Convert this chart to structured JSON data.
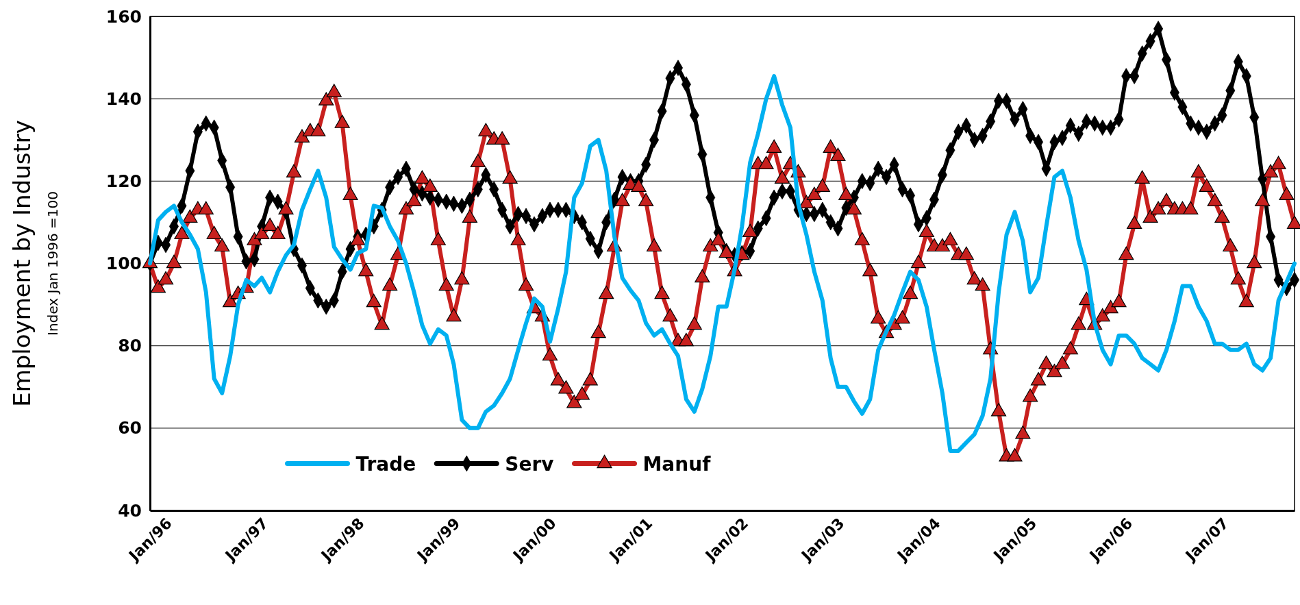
{
  "chart_data": {
    "type": "line",
    "ylabel": "Employment by Industry",
    "annotations": [
      "Index Jan 1996 =100"
    ],
    "x": [
      "1996-01",
      "1996-02",
      "1996-03",
      "1996-04",
      "1996-05",
      "1996-06",
      "1996-07",
      "1996-08",
      "1996-09",
      "1996-10",
      "1996-11",
      "1996-12",
      "1997-01",
      "1997-02",
      "1997-03",
      "1997-04",
      "1997-05",
      "1997-06",
      "1997-07",
      "1997-08",
      "1997-09",
      "1997-10",
      "1997-11",
      "1997-12",
      "1998-01",
      "1998-02",
      "1998-03",
      "1998-04",
      "1998-05",
      "1998-06",
      "1998-07",
      "1998-08",
      "1998-09",
      "1998-10",
      "1998-11",
      "1998-12",
      "1999-01",
      "1999-02",
      "1999-03",
      "1999-04",
      "1999-05",
      "1999-06",
      "1999-07",
      "1999-08",
      "1999-09",
      "1999-10",
      "1999-11",
      "1999-12",
      "2000-01",
      "2000-02",
      "2000-03",
      "2000-04",
      "2000-05",
      "2000-06",
      "2000-07",
      "2000-08",
      "2000-09",
      "2000-10",
      "2000-11",
      "2000-12",
      "2001-01",
      "2001-02",
      "2001-03",
      "2001-04",
      "2001-05",
      "2001-06",
      "2001-07",
      "2001-08",
      "2001-09",
      "2001-10",
      "2001-11",
      "2001-12",
      "2002-01",
      "2002-02",
      "2002-03",
      "2002-04",
      "2002-05",
      "2002-06",
      "2002-07",
      "2002-08",
      "2002-09",
      "2002-10",
      "2002-11",
      "2002-12",
      "2003-01",
      "2003-02",
      "2003-03",
      "2003-04",
      "2003-05",
      "2003-06",
      "2003-07",
      "2003-08",
      "2003-09",
      "2003-10",
      "2003-11",
      "2003-12",
      "2004-01",
      "2004-02",
      "2004-03",
      "2004-04",
      "2004-05",
      "2004-06",
      "2004-07",
      "2004-08",
      "2004-09",
      "2004-10",
      "2004-11",
      "2004-12",
      "2005-01",
      "2005-02",
      "2005-03",
      "2005-04",
      "2005-05",
      "2005-06",
      "2005-07",
      "2005-08",
      "2005-09",
      "2005-10",
      "2005-11",
      "2005-12",
      "2006-01",
      "2006-02",
      "2006-03",
      "2006-04",
      "2006-05",
      "2006-06",
      "2006-07",
      "2006-08",
      "2006-09",
      "2006-10",
      "2006-11",
      "2006-12",
      "2007-01",
      "2007-02",
      "2007-03",
      "2007-04",
      "2007-05",
      "2007-06",
      "2007-07",
      "2007-08",
      "2007-09",
      "2007-10",
      "2007-11",
      "2007-12"
    ],
    "series": [
      {
        "name": "Trade",
        "color": "#00b0f0",
        "marker": "none",
        "values": [
          100,
          110.5,
          112.5,
          114,
          110,
          107,
          103.5,
          93,
          72,
          68.5,
          77.5,
          90,
          96,
          94.5,
          96.5,
          93,
          98,
          102,
          104.5,
          113,
          118,
          122.5,
          116,
          104,
          101,
          98.5,
          102.5,
          103.5,
          114,
          113.5,
          109,
          105.5,
          100,
          93,
          85,
          80.5,
          84,
          82.5,
          75.5,
          62,
          60,
          60,
          64,
          65.5,
          68.5,
          72,
          79,
          85.5,
          91.5,
          89.5,
          81,
          89,
          98,
          116,
          119.5,
          128.5,
          130,
          122.5,
          106.5,
          96.5,
          93.5,
          91,
          85.5,
          82.5,
          84,
          80.5,
          77.5,
          67,
          64,
          69.5,
          77.5,
          89.5,
          89.5,
          98.5,
          109,
          124.5,
          131.5,
          140,
          145.5,
          138.5,
          133,
          114.5,
          107,
          98,
          91,
          77,
          70,
          70,
          66.5,
          63.5,
          67,
          79,
          83.5,
          87.5,
          93,
          98,
          96,
          89.5,
          79,
          68.5,
          54.5,
          54.5,
          56.5,
          58.5,
          63,
          72,
          93,
          107,
          112.5,
          105.5,
          93,
          96.5,
          109,
          121,
          122.5,
          116,
          105.5,
          98.5,
          85.5,
          79,
          75.5,
          82.5,
          82.5,
          80.5,
          77,
          75.5,
          74,
          79,
          86,
          94.5,
          94.5,
          89.5,
          86,
          80.5,
          80.5,
          79,
          79,
          80.5,
          75.5,
          74,
          77,
          91,
          95.5,
          100
        ]
      },
      {
        "name": "Serv",
        "color": "#000000",
        "marker": "diamond",
        "values": [
          100,
          105,
          104.5,
          109,
          114,
          122.5,
          132,
          134,
          133,
          125,
          118.5,
          106.5,
          100.5,
          101,
          109,
          116,
          115,
          112.5,
          103.5,
          99.5,
          94,
          91,
          89.5,
          91,
          98,
          103.5,
          106.5,
          107,
          109,
          113,
          118.5,
          121,
          123,
          118,
          117,
          116,
          115.5,
          115,
          114.5,
          114,
          115.5,
          118,
          121.5,
          118,
          113,
          109,
          112,
          111.5,
          109.5,
          111.5,
          113,
          113,
          113,
          111.5,
          110,
          106,
          103,
          110,
          115.5,
          121,
          120,
          120,
          124,
          130,
          137,
          145,
          147.5,
          143.5,
          136,
          126.5,
          116,
          107.5,
          103,
          102,
          102.5,
          103,
          108.5,
          111,
          116,
          117.5,
          117.5,
          113,
          112,
          112,
          113,
          110,
          108.5,
          113.5,
          116,
          120,
          119.5,
          123,
          121,
          124,
          118,
          116.5,
          109.5,
          111,
          115.5,
          121.5,
          127.5,
          132,
          133.5,
          130,
          131,
          134.5,
          139.5,
          139.5,
          135,
          137.5,
          131,
          129.5,
          123,
          129.5,
          130.5,
          133.5,
          131.5,
          134.5,
          134,
          133,
          133,
          135,
          145.5,
          145.5,
          151,
          154,
          157,
          149.5,
          141.5,
          138,
          134,
          133,
          132,
          134,
          136,
          142,
          149,
          145.5,
          135.5,
          120.5,
          106.5,
          96,
          94,
          96
        ]
      },
      {
        "name": "Manuf",
        "color": "#c8201e",
        "marker": "triangle",
        "values": [
          100,
          94,
          96,
          100,
          107,
          111,
          113,
          113,
          107,
          104,
          90.5,
          92.5,
          94,
          105.5,
          107,
          109,
          107,
          113,
          122,
          130.5,
          132,
          132,
          139.5,
          141.5,
          134,
          116.5,
          105.5,
          98,
          90.5,
          85,
          94.5,
          102,
          113,
          115,
          120.5,
          118.5,
          105.5,
          94.5,
          87,
          96,
          111,
          124.5,
          132,
          130,
          130,
          120.5,
          105.5,
          94.5,
          89,
          87,
          77.5,
          71.5,
          69.5,
          66,
          68,
          71.5,
          83,
          92.5,
          104,
          115,
          119,
          118.5,
          115,
          104,
          92.5,
          87,
          81,
          81,
          85,
          96.5,
          104,
          105.5,
          102.5,
          98,
          102,
          107.5,
          124,
          124,
          128,
          120.5,
          124,
          122,
          114.5,
          116.5,
          118.5,
          128,
          126,
          116.5,
          113,
          105.5,
          98,
          86.5,
          83,
          85,
          86.5,
          92.5,
          100,
          107.5,
          104,
          104,
          105.5,
          102,
          102,
          96,
          94.5,
          79,
          64,
          53,
          53,
          58.5,
          67.5,
          71.5,
          75.5,
          73.5,
          75.5,
          79,
          85,
          91,
          85,
          87,
          89,
          90.5,
          102,
          109.5,
          120.5,
          111,
          113,
          115,
          113,
          113,
          113,
          122,
          118.5,
          115,
          111,
          104,
          96,
          90.5,
          100,
          115,
          122,
          124,
          116.5,
          109.5
        ]
      }
    ],
    "xlim": [
      "1996-01",
      "2007-12"
    ],
    "xticks": [
      {
        "value": "1996-01",
        "label": "Jan/96"
      },
      {
        "value": "1997-01",
        "label": "Jan/97"
      },
      {
        "value": "1998-01",
        "label": "Jan/98"
      },
      {
        "value": "1999-01",
        "label": "Jan/99"
      },
      {
        "value": "2000-01",
        "label": "Jan/00"
      },
      {
        "value": "2001-01",
        "label": "Jan/01"
      },
      {
        "value": "2002-01",
        "label": "Jan/02"
      },
      {
        "value": "2003-01",
        "label": "Jan/03"
      },
      {
        "value": "2004-01",
        "label": "Jan/04"
      },
      {
        "value": "2005-01",
        "label": "Jan/05"
      },
      {
        "value": "2006-01",
        "label": "Jan/06"
      },
      {
        "value": "2007-01",
        "label": "Jan/07"
      }
    ],
    "ylim": [
      40,
      160
    ],
    "yticks": [
      40,
      60,
      80,
      100,
      120,
      140,
      160
    ],
    "grid": "y",
    "legend": "bottom left",
    "line_style": "solid"
  }
}
